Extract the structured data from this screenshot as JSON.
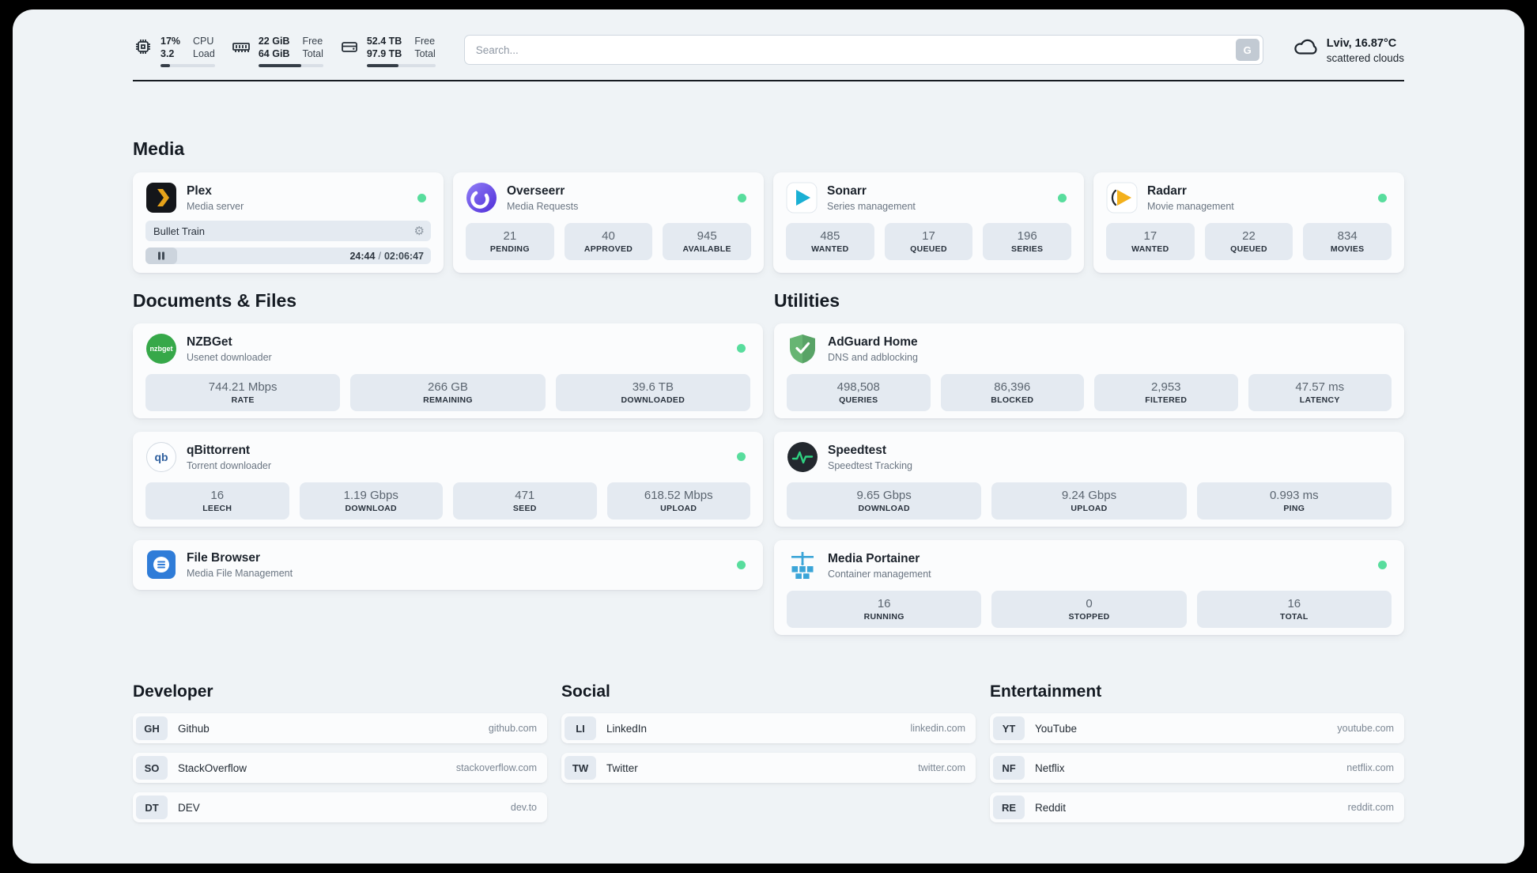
{
  "topbar": {
    "cpu": {
      "value_top": "17%",
      "value_bottom": "3.2",
      "label_top": "CPU",
      "label_bottom": "Load",
      "bar_percent": 17
    },
    "ram": {
      "value_top": "22 GiB",
      "value_bottom": "64 GiB",
      "label_top": "Free",
      "label_bottom": "Total",
      "bar_percent": 66
    },
    "disk": {
      "value_top": "52.4 TB",
      "value_bottom": "97.9 TB",
      "label_top": "Free",
      "label_bottom": "Total",
      "bar_percent": 46
    },
    "search": {
      "placeholder": "Search...",
      "button_label": "G"
    },
    "weather": {
      "location": "Lviv, 16.87°C",
      "condition": "scattered clouds"
    }
  },
  "sections": {
    "media": "Media",
    "documents": "Documents & Files",
    "utilities": "Utilities"
  },
  "icons": {
    "nzbget_label": "nzbget",
    "qbittorrent_label": "qb"
  },
  "apps": {
    "plex": {
      "name": "Plex",
      "subtitle": "Media server",
      "track": "Bullet Train",
      "time_current": "24:44",
      "time_separator": "/",
      "time_total": "02:06:47"
    },
    "overseerr": {
      "name": "Overseerr",
      "subtitle": "Media Requests",
      "stats": [
        {
          "value": "21",
          "label": "PENDING"
        },
        {
          "value": "40",
          "label": "APPROVED"
        },
        {
          "value": "945",
          "label": "AVAILABLE"
        }
      ]
    },
    "sonarr": {
      "name": "Sonarr",
      "subtitle": "Series management",
      "stats": [
        {
          "value": "485",
          "label": "WANTED"
        },
        {
          "value": "17",
          "label": "QUEUED"
        },
        {
          "value": "196",
          "label": "SERIES"
        }
      ]
    },
    "radarr": {
      "name": "Radarr",
      "subtitle": "Movie management",
      "stats": [
        {
          "value": "17",
          "label": "WANTED"
        },
        {
          "value": "22",
          "label": "QUEUED"
        },
        {
          "value": "834",
          "label": "MOVIES"
        }
      ]
    },
    "nzbget": {
      "name": "NZBGet",
      "subtitle": "Usenet downloader",
      "stats": [
        {
          "value": "744.21 Mbps",
          "label": "RATE"
        },
        {
          "value": "266 GB",
          "label": "REMAINING"
        },
        {
          "value": "39.6 TB",
          "label": "DOWNLOADED"
        }
      ]
    },
    "qbittorrent": {
      "name": "qBittorrent",
      "subtitle": "Torrent downloader",
      "stats": [
        {
          "value": "16",
          "label": "LEECH"
        },
        {
          "value": "1.19 Gbps",
          "label": "DOWNLOAD"
        },
        {
          "value": "471",
          "label": "SEED"
        },
        {
          "value": "618.52 Mbps",
          "label": "UPLOAD"
        }
      ]
    },
    "filebrowser": {
      "name": "File Browser",
      "subtitle": "Media File Management"
    },
    "adguard": {
      "name": "AdGuard Home",
      "subtitle": "DNS and adblocking",
      "stats": [
        {
          "value": "498,508",
          "label": "QUERIES"
        },
        {
          "value": "86,396",
          "label": "BLOCKED"
        },
        {
          "value": "2,953",
          "label": "FILTERED"
        },
        {
          "value": "47.57 ms",
          "label": "LATENCY"
        }
      ]
    },
    "speedtest": {
      "name": "Speedtest",
      "subtitle": "Speedtest Tracking",
      "stats": [
        {
          "value": "9.65 Gbps",
          "label": "DOWNLOAD"
        },
        {
          "value": "9.24 Gbps",
          "label": "UPLOAD"
        },
        {
          "value": "0.993 ms",
          "label": "PING"
        }
      ]
    },
    "portainer": {
      "name": "Media Portainer",
      "subtitle": "Container management",
      "stats": [
        {
          "value": "16",
          "label": "RUNNING"
        },
        {
          "value": "0",
          "label": "STOPPED"
        },
        {
          "value": "16",
          "label": "TOTAL"
        }
      ]
    }
  },
  "bookmarks": {
    "developer": {
      "title": "Developer",
      "links": [
        {
          "abbr": "GH",
          "name": "Github",
          "url": "github.com"
        },
        {
          "abbr": "SO",
          "name": "StackOverflow",
          "url": "stackoverflow.com"
        },
        {
          "abbr": "DT",
          "name": "DEV",
          "url": "dev.to"
        }
      ]
    },
    "social": {
      "title": "Social",
      "links": [
        {
          "abbr": "LI",
          "name": "LinkedIn",
          "url": "linkedin.com"
        },
        {
          "abbr": "TW",
          "name": "Twitter",
          "url": "twitter.com"
        }
      ]
    },
    "entertainment": {
      "title": "Entertainment",
      "links": [
        {
          "abbr": "YT",
          "name": "YouTube",
          "url": "youtube.com"
        },
        {
          "abbr": "NF",
          "name": "Netflix",
          "url": "netflix.com"
        },
        {
          "abbr": "RE",
          "name": "Reddit",
          "url": "reddit.com"
        }
      ]
    }
  }
}
